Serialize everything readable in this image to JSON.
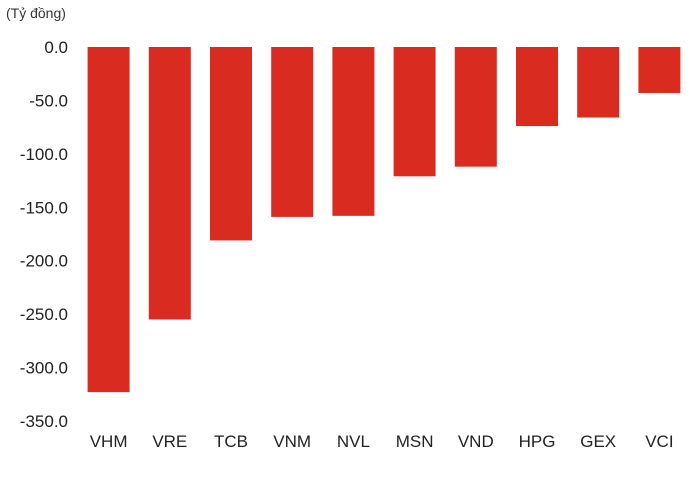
{
  "chart_data": {
    "type": "bar",
    "title": "",
    "unit_label": "(Tỷ đồng)",
    "xlabel": "",
    "ylabel": "",
    "categories": [
      "VHM",
      "VRE",
      "TCB",
      "VNM",
      "NVL",
      "MSN",
      "VND",
      "HPG",
      "GEX",
      "VCI"
    ],
    "values": [
      -323,
      -255,
      -181,
      -159,
      -158,
      -121,
      -112,
      -74,
      -66,
      -43
    ],
    "ylim": [
      -350,
      0
    ],
    "yticks": [
      0,
      -50,
      -100,
      -150,
      -200,
      -250,
      -300,
      -350
    ],
    "ytick_labels": [
      "0.0",
      "-50.0",
      "-100.0",
      "-150.0",
      "-200.0",
      "-250.0",
      "-300.0",
      "-350.0"
    ],
    "grid": false,
    "legend": "none",
    "bar_color": "#d92b1f"
  }
}
